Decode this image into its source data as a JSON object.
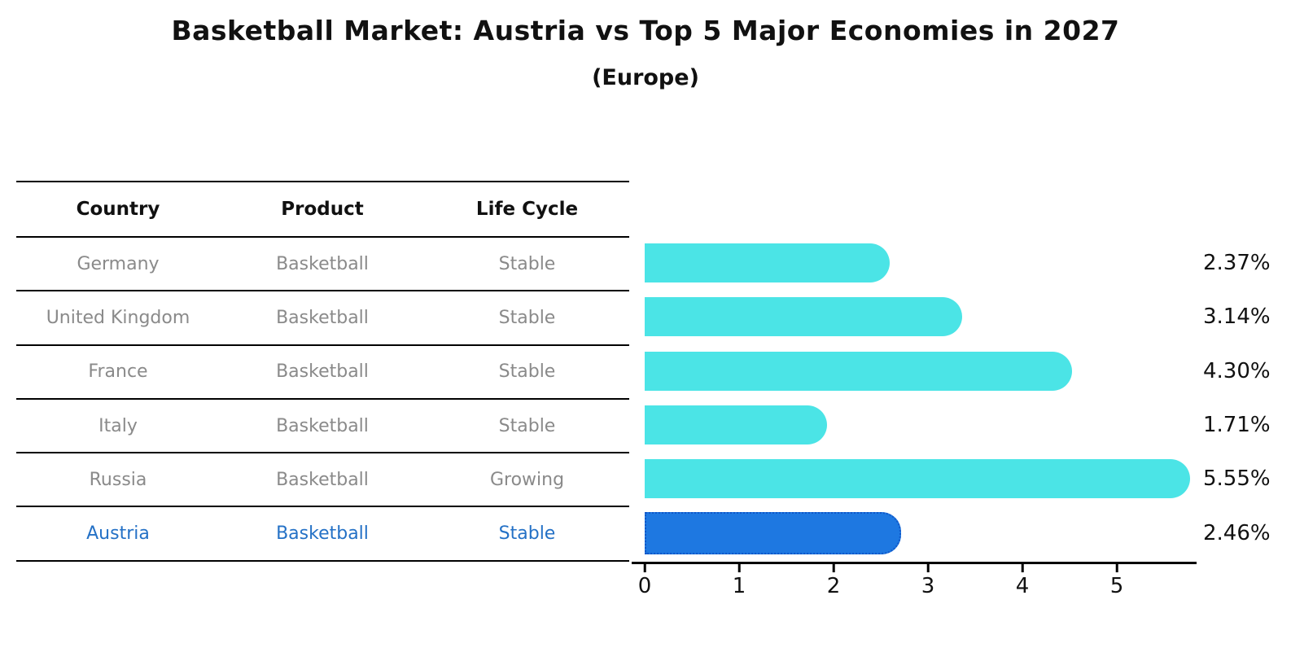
{
  "title": "Basketball Market: Austria vs Top 5 Major Economies in 2027",
  "subtitle": "(Europe)",
  "table": {
    "headers": {
      "country": "Country",
      "product": "Product",
      "life_cycle": "Life Cycle"
    },
    "rows": [
      {
        "country": "Germany",
        "product": "Basketball",
        "life_cycle": "Stable",
        "highlight": false
      },
      {
        "country": "United Kingdom",
        "product": "Basketball",
        "life_cycle": "Stable",
        "highlight": false
      },
      {
        "country": "France",
        "product": "Basketball",
        "life_cycle": "Stable",
        "highlight": false
      },
      {
        "country": "Italy",
        "product": "Basketball",
        "life_cycle": "Stable",
        "highlight": false
      },
      {
        "country": "Russia",
        "product": "Basketball",
        "life_cycle": "Growing",
        "highlight": false
      },
      {
        "country": "Austria",
        "product": "Basketball",
        "life_cycle": "Stable",
        "highlight": true
      }
    ]
  },
  "chart_data": {
    "type": "bar",
    "orientation": "horizontal",
    "title": "Basketball Market: Austria vs Top 5 Major Economies in 2027 (Europe)",
    "categories": [
      "Germany",
      "United Kingdom",
      "France",
      "Italy",
      "Russia",
      "Austria"
    ],
    "values": [
      2.37,
      3.14,
      4.3,
      1.71,
      5.55,
      2.46
    ],
    "value_labels": [
      "2.37%",
      "3.14%",
      "4.30%",
      "1.71%",
      "5.55%",
      "2.46%"
    ],
    "x_ticks": [
      0,
      1,
      2,
      3,
      4,
      5
    ],
    "x_tick_labels": [
      "0",
      "1",
      "2",
      "3",
      "4",
      "5"
    ],
    "xlim": [
      0,
      5.845
    ],
    "grid": false,
    "legend": false,
    "bar_color": "#4BE4E6",
    "highlight_index": 5,
    "highlight_bar_color": "#1E78E1",
    "highlight_bar_border_color": "#1057C8",
    "highlight_text_color": "#2471C6",
    "row_text_color": "#8a8a8a",
    "axis_color": "#000000"
  }
}
